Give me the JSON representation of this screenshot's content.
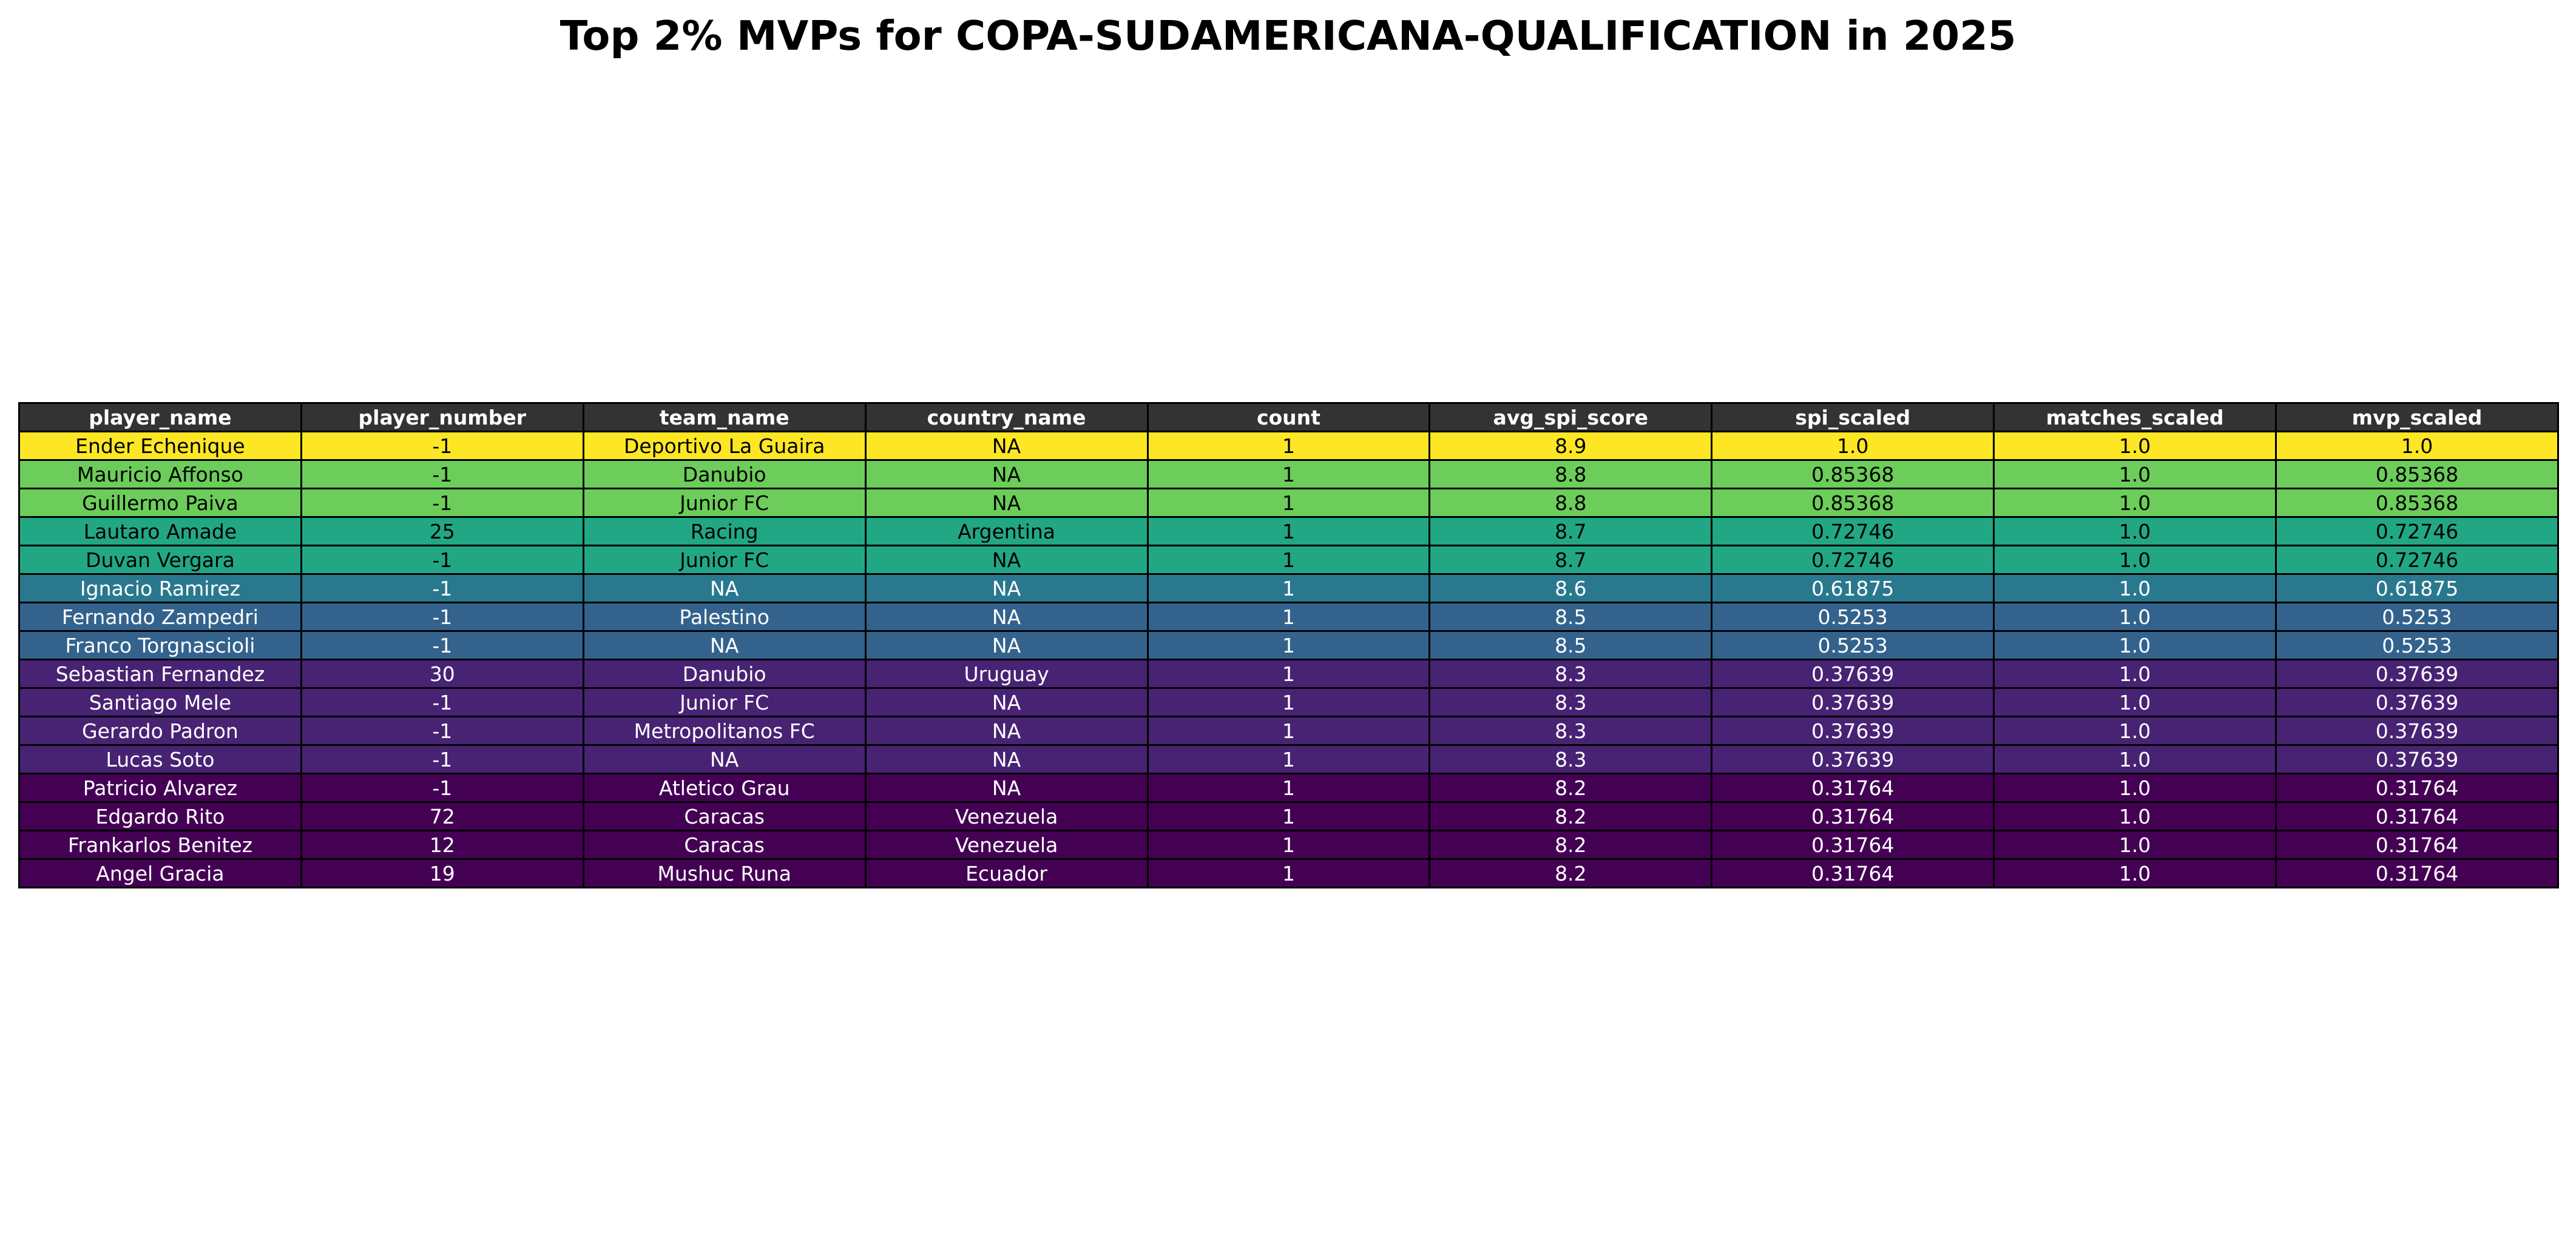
{
  "chart_data": {
    "type": "table",
    "title": "Top 2% MVPs for COPA-SUDAMERICANA-QUALIFICATION in 2025",
    "columns": [
      "player_name",
      "player_number",
      "team_name",
      "country_name",
      "count",
      "avg_spi_score",
      "spi_scaled",
      "matches_scaled",
      "mvp_scaled"
    ],
    "rows": [
      [
        "Ender Echenique",
        "-1",
        "Deportivo La Guaira",
        "NA",
        "1",
        "8.9",
        "1.0",
        "1.0",
        "1.0"
      ],
      [
        "Mauricio Affonso",
        "-1",
        "Danubio",
        "NA",
        "1",
        "8.8",
        "0.85368",
        "1.0",
        "0.85368"
      ],
      [
        "Guillermo Paiva",
        "-1",
        "Junior FC",
        "NA",
        "1",
        "8.8",
        "0.85368",
        "1.0",
        "0.85368"
      ],
      [
        "Lautaro Amade",
        "25",
        "Racing",
        "Argentina",
        "1",
        "8.7",
        "0.72746",
        "1.0",
        "0.72746"
      ],
      [
        "Duvan Vergara",
        "-1",
        "Junior FC",
        "NA",
        "1",
        "8.7",
        "0.72746",
        "1.0",
        "0.72746"
      ],
      [
        "Ignacio Ramirez",
        "-1",
        "NA",
        "NA",
        "1",
        "8.6",
        "0.61875",
        "1.0",
        "0.61875"
      ],
      [
        "Fernando Zampedri",
        "-1",
        "Palestino",
        "NA",
        "1",
        "8.5",
        "0.5253",
        "1.0",
        "0.5253"
      ],
      [
        "Franco Torgnascioli",
        "-1",
        "NA",
        "NA",
        "1",
        "8.5",
        "0.5253",
        "1.0",
        "0.5253"
      ],
      [
        "Sebastian Fernandez",
        "30",
        "Danubio",
        "Uruguay",
        "1",
        "8.3",
        "0.37639",
        "1.0",
        "0.37639"
      ],
      [
        "Santiago Mele",
        "-1",
        "Junior FC",
        "NA",
        "1",
        "8.3",
        "0.37639",
        "1.0",
        "0.37639"
      ],
      [
        "Gerardo Padron",
        "-1",
        "Metropolitanos FC",
        "NA",
        "1",
        "8.3",
        "0.37639",
        "1.0",
        "0.37639"
      ],
      [
        "Lucas Soto",
        "-1",
        "NA",
        "NA",
        "1",
        "8.3",
        "0.37639",
        "1.0",
        "0.37639"
      ],
      [
        "Patricio Alvarez",
        "-1",
        "Atletico Grau",
        "NA",
        "1",
        "8.2",
        "0.31764",
        "1.0",
        "0.31764"
      ],
      [
        "Edgardo Rito",
        "72",
        "Caracas",
        "Venezuela",
        "1",
        "8.2",
        "0.31764",
        "1.0",
        "0.31764"
      ],
      [
        "Frankarlos Benitez",
        "12",
        "Caracas",
        "Venezuela",
        "1",
        "8.2",
        "0.31764",
        "1.0",
        "0.31764"
      ],
      [
        "Angel Gracia",
        "19",
        "Mushuc Runa",
        "Ecuador",
        "1",
        "8.2",
        "0.31764",
        "1.0",
        "0.31764"
      ]
    ],
    "row_colors": [
      "#fde725",
      "#6ccd5a",
      "#6ccd5a",
      "#22a785",
      "#22a785",
      "#2a788e",
      "#33638d",
      "#33638d",
      "#482374",
      "#482374",
      "#482374",
      "#482374",
      "#440154",
      "#440154",
      "#440154",
      "#440154"
    ],
    "row_text_colors": [
      "#000000",
      "#000000",
      "#000000",
      "#000000",
      "#000000",
      "#ffffff",
      "#ffffff",
      "#ffffff",
      "#ffffff",
      "#ffffff",
      "#ffffff",
      "#ffffff",
      "#ffffff",
      "#ffffff",
      "#ffffff",
      "#ffffff"
    ],
    "header_color": "#333333",
    "header_text_color": "#ffffff"
  }
}
